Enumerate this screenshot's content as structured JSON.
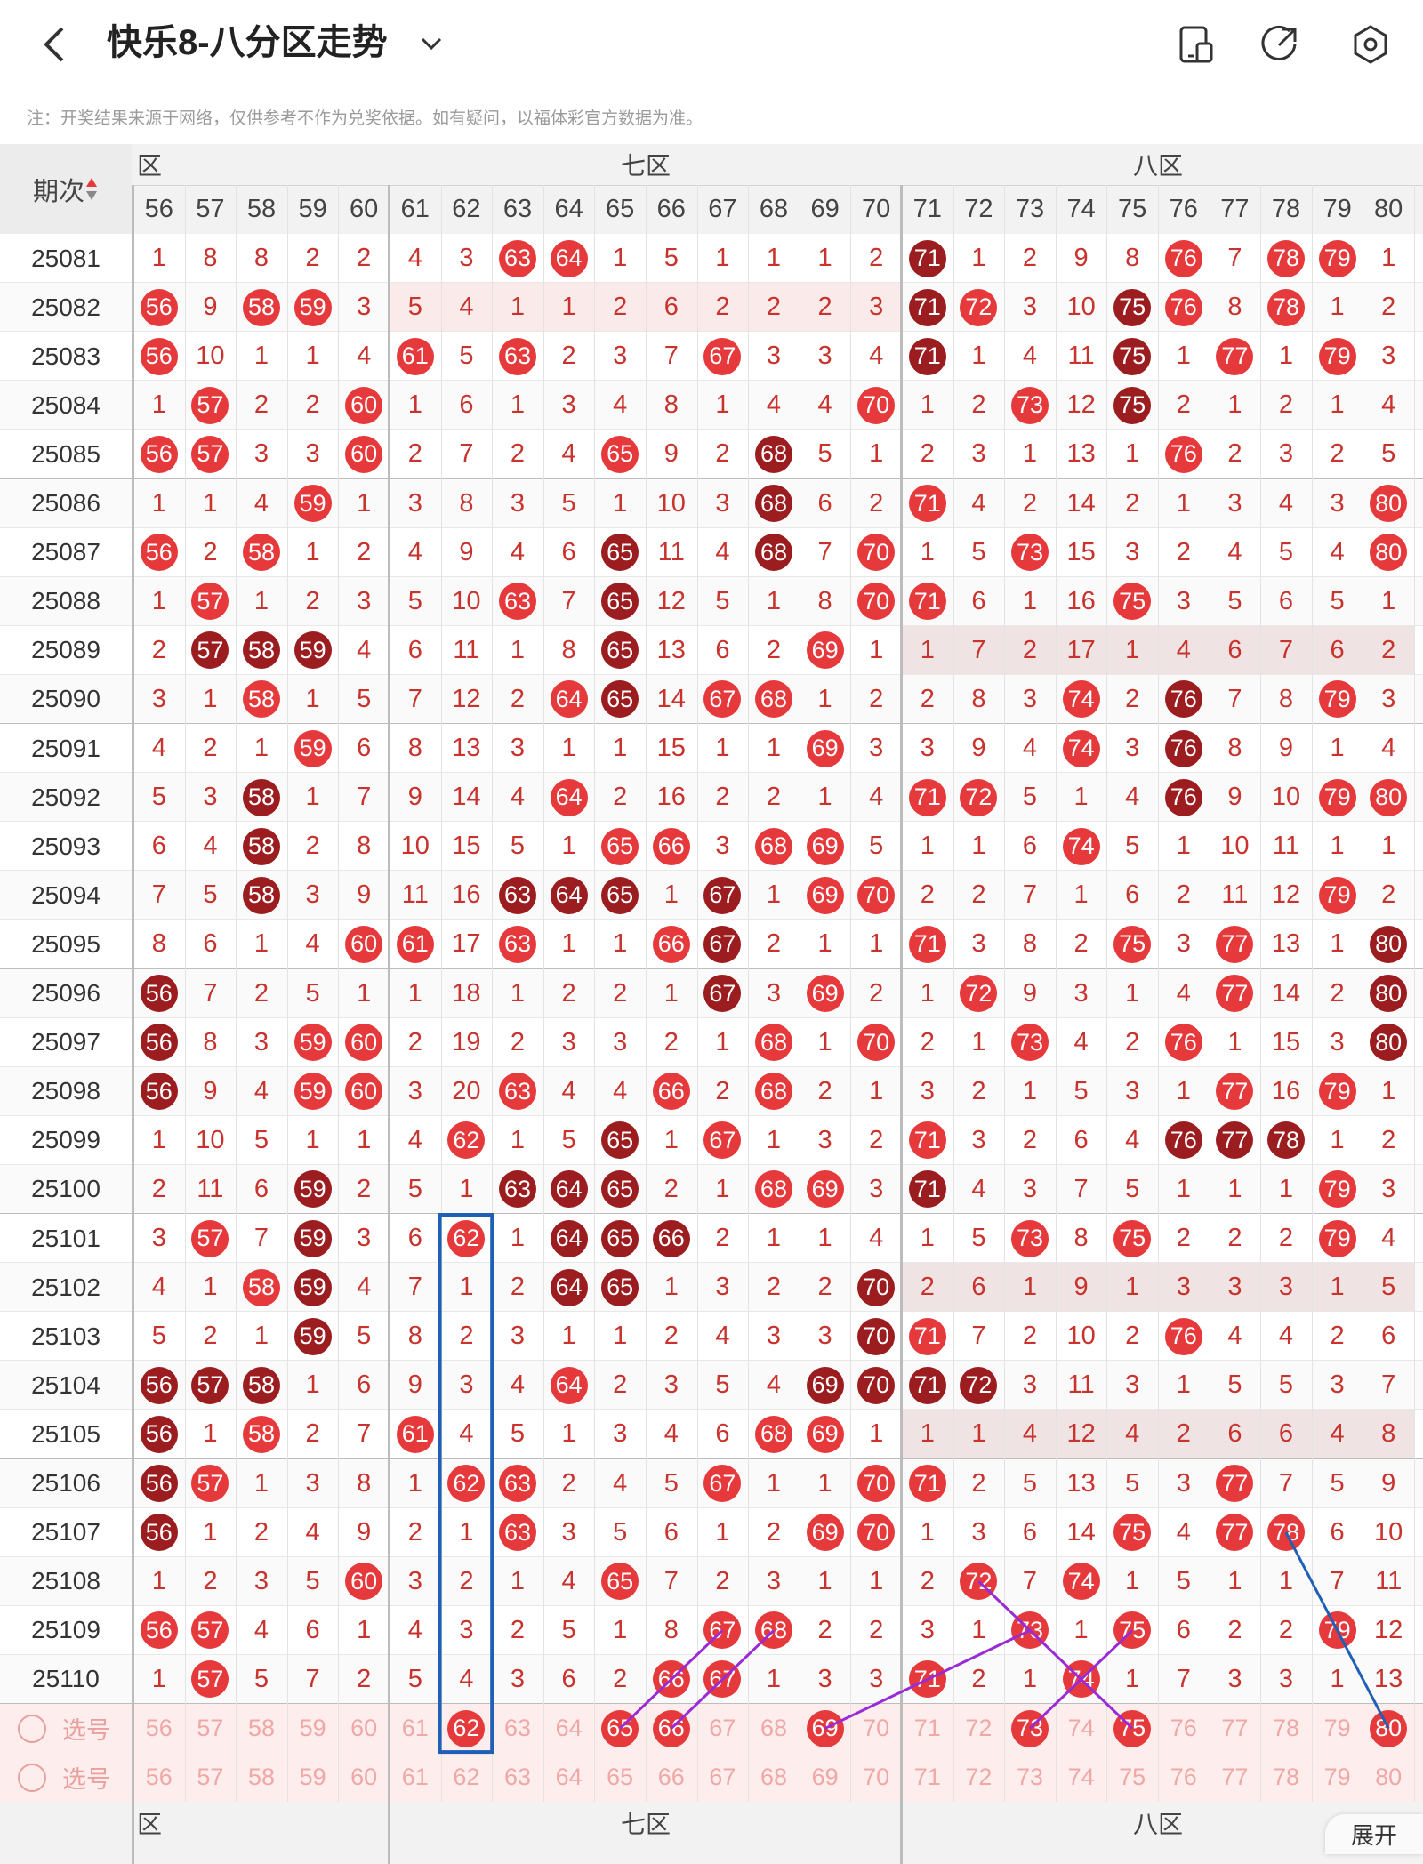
{
  "header": {
    "title": "快乐8-八分区走势",
    "back_icon": "chevron-left-icon",
    "dropdown_icon": "chevron-down-icon",
    "icons": [
      "phone-screen-icon",
      "share-icon",
      "settings-icon"
    ]
  },
  "notice": "注：开奖结果来源于网络，仅供参考不作为兑奖依据。如有疑问，以福体彩官方数据为准。",
  "table": {
    "issue_header": "期次",
    "zones_top": [
      {
        "label": "六区",
        "visible": "区"
      },
      {
        "label": "七区",
        "visible": "七区"
      },
      {
        "label": "八区",
        "visible": "八区"
      }
    ],
    "zones_bottom": [
      {
        "visible": "区"
      },
      {
        "visible": "七区"
      },
      {
        "visible": "八区"
      }
    ],
    "columns": [
      "56",
      "57",
      "58",
      "59",
      "60",
      "61",
      "62",
      "63",
      "64",
      "65",
      "66",
      "67",
      "68",
      "69",
      "70",
      "71",
      "72",
      "73",
      "74",
      "75",
      "76",
      "77",
      "78",
      "79",
      "80"
    ],
    "rows": [
      {
        "issue": "25081",
        "cells": [
          "1",
          "8",
          "8",
          "2",
          "2",
          "4",
          "3",
          "R63",
          "R64",
          "1",
          "5",
          "1",
          "1",
          "1",
          "2",
          "D71",
          "1",
          "2",
          "9",
          "8",
          "R76",
          "7",
          "R78",
          "R79",
          "1"
        ]
      },
      {
        "issue": "25082",
        "cells": [
          "R56",
          "9",
          "R58",
          "R59",
          "3",
          "5",
          "4",
          "1",
          "1",
          "2",
          "6",
          "2",
          "2",
          "2",
          "3",
          "D71",
          "R72",
          "3",
          "10",
          "D75",
          "R76",
          "8",
          "R78",
          "1",
          "2"
        ]
      },
      {
        "issue": "25083",
        "cells": [
          "R56",
          "10",
          "1",
          "1",
          "4",
          "R61",
          "5",
          "R63",
          "2",
          "3",
          "7",
          "R67",
          "3",
          "3",
          "4",
          "D71",
          "1",
          "4",
          "11",
          "D75",
          "1",
          "R77",
          "1",
          "R79",
          "3"
        ]
      },
      {
        "issue": "25084",
        "cells": [
          "1",
          "R57",
          "2",
          "2",
          "R60",
          "1",
          "6",
          "1",
          "3",
          "4",
          "8",
          "1",
          "4",
          "4",
          "R70",
          "1",
          "2",
          "R73",
          "12",
          "D75",
          "2",
          "1",
          "2",
          "1",
          "4"
        ]
      },
      {
        "issue": "25085",
        "cells": [
          "R56",
          "R57",
          "3",
          "3",
          "R60",
          "2",
          "7",
          "2",
          "4",
          "R65",
          "9",
          "2",
          "D68",
          "5",
          "1",
          "2",
          "3",
          "1",
          "13",
          "1",
          "R76",
          "2",
          "3",
          "2",
          "5"
        ]
      },
      {
        "issue": "25086",
        "cells": [
          "1",
          "1",
          "4",
          "R59",
          "1",
          "3",
          "8",
          "3",
          "5",
          "1",
          "10",
          "3",
          "D68",
          "6",
          "2",
          "R71",
          "4",
          "2",
          "14",
          "2",
          "1",
          "3",
          "4",
          "3",
          "R80"
        ]
      },
      {
        "issue": "25087",
        "cells": [
          "R56",
          "2",
          "R58",
          "1",
          "2",
          "4",
          "9",
          "4",
          "6",
          "D65",
          "11",
          "4",
          "D68",
          "7",
          "R70",
          "1",
          "5",
          "R73",
          "15",
          "3",
          "2",
          "4",
          "5",
          "4",
          "R80"
        ]
      },
      {
        "issue": "25088",
        "cells": [
          "1",
          "R57",
          "1",
          "2",
          "3",
          "5",
          "10",
          "R63",
          "7",
          "D65",
          "12",
          "5",
          "1",
          "8",
          "R70",
          "R71",
          "6",
          "1",
          "16",
          "R75",
          "3",
          "5",
          "6",
          "5",
          "1"
        ]
      },
      {
        "issue": "25089",
        "cells": [
          "2",
          "D57",
          "D58",
          "D59",
          "4",
          "6",
          "11",
          "1",
          "8",
          "D65",
          "13",
          "6",
          "2",
          "R69",
          "1",
          "1",
          "7",
          "2",
          "17",
          "1",
          "4",
          "6",
          "7",
          "6",
          "2"
        ]
      },
      {
        "issue": "25090",
        "cells": [
          "3",
          "1",
          "R58",
          "1",
          "5",
          "7",
          "12",
          "2",
          "R64",
          "D65",
          "14",
          "R67",
          "R68",
          "1",
          "2",
          "2",
          "8",
          "3",
          "R74",
          "2",
          "D76",
          "7",
          "8",
          "R79",
          "3"
        ]
      },
      {
        "issue": "25091",
        "cells": [
          "4",
          "2",
          "1",
          "R59",
          "6",
          "8",
          "13",
          "3",
          "1",
          "1",
          "15",
          "1",
          "1",
          "R69",
          "3",
          "3",
          "9",
          "4",
          "R74",
          "3",
          "D76",
          "8",
          "9",
          "1",
          "4"
        ]
      },
      {
        "issue": "25092",
        "cells": [
          "5",
          "3",
          "D58",
          "1",
          "7",
          "9",
          "14",
          "4",
          "R64",
          "2",
          "16",
          "2",
          "2",
          "1",
          "4",
          "R71",
          "R72",
          "5",
          "1",
          "4",
          "D76",
          "9",
          "10",
          "R79",
          "R80"
        ]
      },
      {
        "issue": "25093",
        "cells": [
          "6",
          "4",
          "D58",
          "2",
          "8",
          "10",
          "15",
          "5",
          "1",
          "R65",
          "R66",
          "3",
          "R68",
          "R69",
          "5",
          "1",
          "1",
          "6",
          "R74",
          "5",
          "1",
          "10",
          "11",
          "1",
          "1"
        ]
      },
      {
        "issue": "25094",
        "cells": [
          "7",
          "5",
          "D58",
          "3",
          "9",
          "11",
          "16",
          "D63",
          "D64",
          "D65",
          "1",
          "D67",
          "1",
          "R69",
          "R70",
          "2",
          "2",
          "7",
          "1",
          "6",
          "2",
          "11",
          "12",
          "R79",
          "2"
        ]
      },
      {
        "issue": "25095",
        "cells": [
          "8",
          "6",
          "1",
          "4",
          "R60",
          "R61",
          "17",
          "R63",
          "1",
          "1",
          "R66",
          "D67",
          "2",
          "1",
          "1",
          "R71",
          "3",
          "8",
          "2",
          "R75",
          "3",
          "R77",
          "13",
          "1",
          "D80"
        ]
      },
      {
        "issue": "25096",
        "cells": [
          "D56",
          "7",
          "2",
          "5",
          "1",
          "1",
          "18",
          "1",
          "2",
          "2",
          "1",
          "D67",
          "3",
          "R69",
          "2",
          "1",
          "R72",
          "9",
          "3",
          "1",
          "4",
          "R77",
          "14",
          "2",
          "D80"
        ]
      },
      {
        "issue": "25097",
        "cells": [
          "D56",
          "8",
          "3",
          "R59",
          "R60",
          "2",
          "19",
          "2",
          "3",
          "3",
          "2",
          "1",
          "R68",
          "1",
          "R70",
          "2",
          "1",
          "R73",
          "4",
          "2",
          "R76",
          "1",
          "15",
          "3",
          "D80"
        ]
      },
      {
        "issue": "25098",
        "cells": [
          "D56",
          "9",
          "4",
          "R59",
          "R60",
          "3",
          "20",
          "R63",
          "4",
          "4",
          "R66",
          "2",
          "R68",
          "2",
          "1",
          "3",
          "2",
          "1",
          "5",
          "3",
          "1",
          "R77",
          "16",
          "R79",
          "1"
        ]
      },
      {
        "issue": "25099",
        "cells": [
          "1",
          "10",
          "5",
          "1",
          "1",
          "4",
          "R62",
          "1",
          "5",
          "D65",
          "1",
          "R67",
          "1",
          "3",
          "2",
          "R71",
          "3",
          "2",
          "6",
          "4",
          "D76",
          "D77",
          "D78",
          "1",
          "2"
        ]
      },
      {
        "issue": "25100",
        "cells": [
          "2",
          "11",
          "6",
          "D59",
          "2",
          "5",
          "1",
          "D63",
          "D64",
          "D65",
          "2",
          "1",
          "R68",
          "R69",
          "3",
          "D71",
          "4",
          "3",
          "7",
          "5",
          "1",
          "1",
          "1",
          "R79",
          "3"
        ]
      },
      {
        "issue": "25101",
        "cells": [
          "3",
          "R57",
          "7",
          "D59",
          "3",
          "6",
          "R62",
          "1",
          "D64",
          "D65",
          "D66",
          "2",
          "1",
          "1",
          "4",
          "1",
          "5",
          "R73",
          "8",
          "R75",
          "2",
          "2",
          "2",
          "R79",
          "4"
        ]
      },
      {
        "issue": "25102",
        "cells": [
          "4",
          "1",
          "R58",
          "D59",
          "4",
          "7",
          "1",
          "2",
          "D64",
          "D65",
          "1",
          "3",
          "2",
          "2",
          "D70",
          "2",
          "6",
          "1",
          "9",
          "1",
          "3",
          "3",
          "3",
          "1",
          "5"
        ]
      },
      {
        "issue": "25103",
        "cells": [
          "5",
          "2",
          "1",
          "D59",
          "5",
          "8",
          "2",
          "3",
          "1",
          "1",
          "2",
          "4",
          "3",
          "3",
          "D70",
          "R71",
          "7",
          "2",
          "10",
          "2",
          "R76",
          "4",
          "4",
          "2",
          "6"
        ]
      },
      {
        "issue": "25104",
        "cells": [
          "D56",
          "D57",
          "D58",
          "1",
          "6",
          "9",
          "3",
          "4",
          "R64",
          "2",
          "3",
          "5",
          "4",
          "D69",
          "D70",
          "D71",
          "D72",
          "3",
          "11",
          "3",
          "1",
          "5",
          "5",
          "3",
          "7"
        ]
      },
      {
        "issue": "25105",
        "cells": [
          "D56",
          "1",
          "R58",
          "2",
          "7",
          "R61",
          "4",
          "5",
          "1",
          "3",
          "4",
          "6",
          "R68",
          "R69",
          "1",
          "1",
          "1",
          "4",
          "12",
          "4",
          "2",
          "6",
          "6",
          "4",
          "8"
        ]
      },
      {
        "issue": "25106",
        "cells": [
          "D56",
          "R57",
          "1",
          "3",
          "8",
          "1",
          "R62",
          "R63",
          "2",
          "4",
          "5",
          "R67",
          "1",
          "1",
          "R70",
          "R71",
          "2",
          "5",
          "13",
          "5",
          "3",
          "R77",
          "7",
          "5",
          "9"
        ]
      },
      {
        "issue": "25107",
        "cells": [
          "D56",
          "1",
          "2",
          "4",
          "9",
          "2",
          "1",
          "R63",
          "3",
          "5",
          "6",
          "1",
          "2",
          "R69",
          "R70",
          "1",
          "3",
          "6",
          "14",
          "R75",
          "4",
          "R77",
          "R78",
          "6",
          "10"
        ]
      },
      {
        "issue": "25108",
        "cells": [
          "1",
          "2",
          "3",
          "5",
          "R60",
          "3",
          "2",
          "1",
          "4",
          "R65",
          "7",
          "2",
          "3",
          "1",
          "1",
          "2",
          "R72",
          "7",
          "R74",
          "1",
          "5",
          "1",
          "1",
          "7",
          "11"
        ]
      },
      {
        "issue": "25109",
        "cells": [
          "R56",
          "R57",
          "4",
          "6",
          "1",
          "4",
          "3",
          "2",
          "5",
          "1",
          "8",
          "R67",
          "R68",
          "2",
          "2",
          "3",
          "1",
          "R73",
          "1",
          "R75",
          "6",
          "2",
          "2",
          "R79",
          "12"
        ]
      },
      {
        "issue": "25110",
        "cells": [
          "1",
          "R57",
          "5",
          "7",
          "2",
          "5",
          "4",
          "3",
          "6",
          "2",
          "R66",
          "R67",
          "1",
          "3",
          "3",
          "R71",
          "2",
          "1",
          "R74",
          "1",
          "7",
          "3",
          "3",
          "1",
          "13"
        ]
      }
    ],
    "pick_rows": [
      {
        "label": "选号",
        "selected": [
          "62",
          "65",
          "66",
          "69",
          "73",
          "75",
          "80"
        ]
      },
      {
        "label": "选号",
        "selected": []
      }
    ],
    "shaded_rows_zone8": [
      "25089",
      "25102",
      "25105"
    ],
    "shaded_rows_zone7": [
      "25082"
    ]
  },
  "bottom_tab": {
    "label": "展开"
  },
  "colors": {
    "ball_red": "#e5393b",
    "ball_dark": "#9b1d1f",
    "text_red": "#c8332e",
    "pick_bg": "#fdeeed",
    "selection_box": "#1f5fb5",
    "trend_purple": "#9a2ad6",
    "trend_blue": "#1f5fb5"
  }
}
